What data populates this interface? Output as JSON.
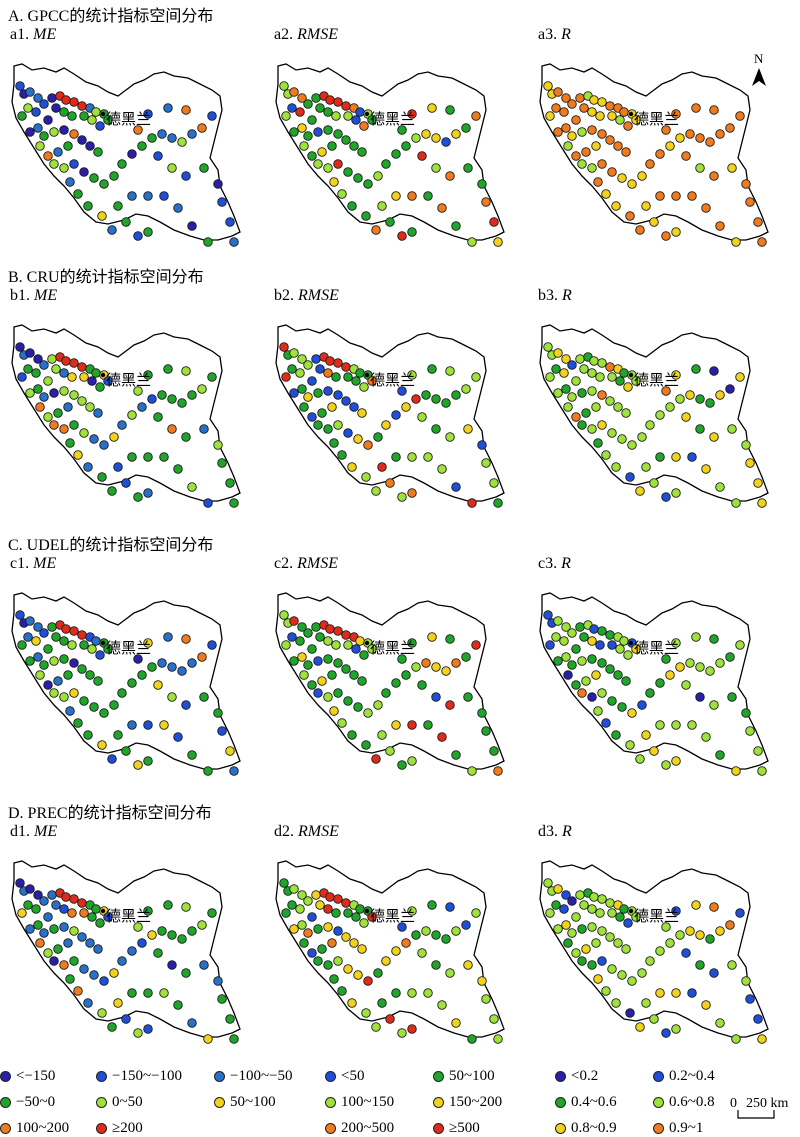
{
  "sections": [
    {
      "id": "A",
      "title": "A. GPCC的统计指标空间分布",
      "panels": [
        {
          "prefix": "a1.",
          "metric": "ME"
        },
        {
          "prefix": "a2.",
          "metric": "RMSE"
        },
        {
          "prefix": "a3.",
          "metric": "R"
        }
      ]
    },
    {
      "id": "B",
      "title": "B. CRU的统计指标空间分布",
      "panels": [
        {
          "prefix": "b1.",
          "metric": "ME"
        },
        {
          "prefix": "b2.",
          "metric": "RMSE"
        },
        {
          "prefix": "b3.",
          "metric": "R"
        }
      ]
    },
    {
      "id": "C",
      "title": "C. UDEL的统计指标空间分布",
      "panels": [
        {
          "prefix": "c1.",
          "metric": "ME"
        },
        {
          "prefix": "c2.",
          "metric": "RMSE"
        },
        {
          "prefix": "c3.",
          "metric": "R"
        }
      ]
    },
    {
      "id": "D",
      "title": "D. PREC的统计指标空间分布",
      "panels": [
        {
          "prefix": "d1.",
          "metric": "ME"
        },
        {
          "prefix": "d2.",
          "metric": "RMSE"
        },
        {
          "prefix": "d3.",
          "metric": "R"
        }
      ]
    }
  ],
  "city_label": "德黑兰",
  "north_label": "N",
  "legends": {
    "me": [
      {
        "label": "<−150",
        "color": "#2a1fa8"
      },
      {
        "label": "−150~−100",
        "color": "#1f4fd8"
      },
      {
        "label": "−100~−50",
        "color": "#2870c8"
      },
      {
        "label": "−50~0",
        "color": "#1fa52a"
      },
      {
        "label": "0~50",
        "color": "#9ee23a"
      },
      {
        "label": "50~100",
        "color": "#f2d21a"
      },
      {
        "label": "100~200",
        "color": "#f07a1e"
      },
      {
        "label": "≥200",
        "color": "#e02a1a"
      }
    ],
    "rmse": [
      {
        "label": "<50",
        "color": "#1f4fd8"
      },
      {
        "label": "50~100",
        "color": "#1fa52a"
      },
      {
        "label": "100~150",
        "color": "#9ee23a"
      },
      {
        "label": "150~200",
        "color": "#f2d21a"
      },
      {
        "label": "200~500",
        "color": "#f07a1e"
      },
      {
        "label": "≥500",
        "color": "#e02a1a"
      }
    ],
    "r": [
      {
        "label": "<0.2",
        "color": "#2a1fa8"
      },
      {
        "label": "0.2~0.4",
        "color": "#1f4fd8"
      },
      {
        "label": "0.4~0.6",
        "color": "#1fa52a"
      },
      {
        "label": "0.6~0.8",
        "color": "#9ee23a"
      },
      {
        "label": "0.8~0.9",
        "color": "#f2d21a"
      },
      {
        "label": "0.9~1",
        "color": "#f07a1e"
      }
    ]
  },
  "scale": {
    "zero": "0",
    "value": "250 km"
  }
}
